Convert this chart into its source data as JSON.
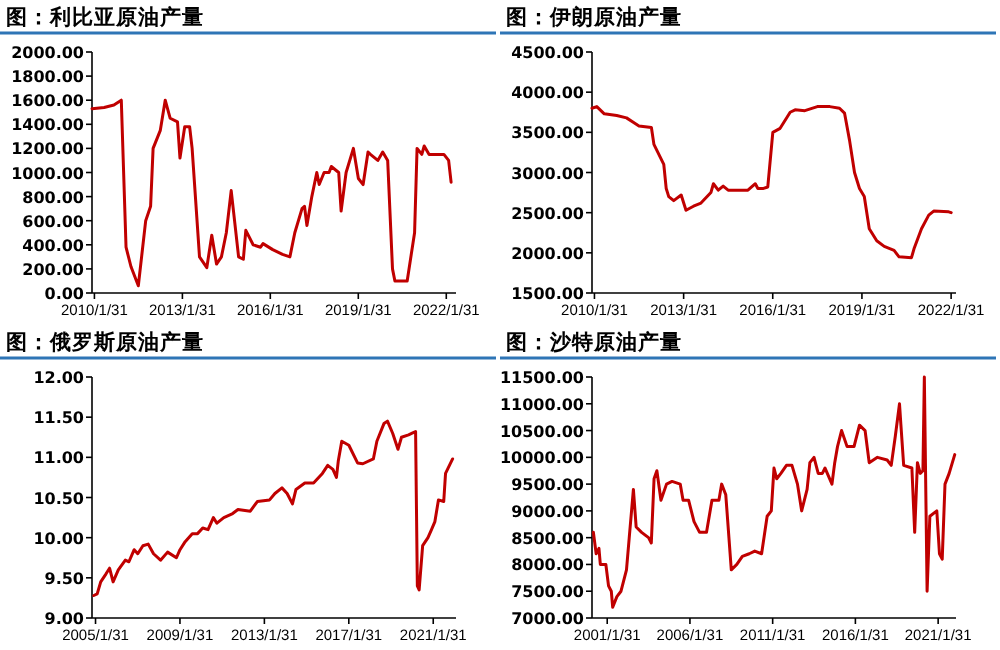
{
  "chart_data": [
    {
      "type": "line",
      "title": "图：利比亚原油产量",
      "x": [
        "2010-01",
        "2010-06",
        "2010-10",
        "2011-01",
        "2011-03",
        "2011-05",
        "2011-08",
        "2011-11",
        "2012-01",
        "2012-02",
        "2012-05",
        "2012-07",
        "2012-09",
        "2012-12",
        "2013-01",
        "2013-03",
        "2013-05",
        "2013-06",
        "2013-09",
        "2013-12",
        "2014-02",
        "2014-04",
        "2014-06",
        "2014-08",
        "2014-10",
        "2015-01",
        "2015-03",
        "2015-04",
        "2015-07",
        "2015-10",
        "2015-11",
        "2016-03",
        "2016-07",
        "2016-10",
        "2016-12",
        "2017-03",
        "2017-04",
        "2017-05",
        "2017-07",
        "2017-09",
        "2017-10",
        "2017-12",
        "2018-02",
        "2018-03",
        "2018-06",
        "2018-07",
        "2018-09",
        "2018-12",
        "2019-02",
        "2019-04",
        "2019-06",
        "2019-07",
        "2019-10",
        "2019-12",
        "2020-02",
        "2020-04",
        "2020-05",
        "2020-08",
        "2020-10",
        "2021-01",
        "2021-02",
        "2021-04",
        "2021-05",
        "2021-07",
        "2022-01",
        "2022-03",
        "2022-04"
      ],
      "series": [
        {
          "color": "#c00000",
          "values": [
            1530,
            1540,
            1560,
            1600,
            380,
            220,
            60,
            600,
            720,
            1200,
            1350,
            1600,
            1450,
            1420,
            1120,
            1380,
            1380,
            1200,
            300,
            210,
            480,
            240,
            300,
            500,
            850,
            300,
            280,
            520,
            400,
            380,
            410,
            360,
            320,
            300,
            500,
            700,
            720,
            560,
            800,
            1000,
            900,
            1000,
            1000,
            1050,
            1000,
            680,
            1000,
            1200,
            950,
            900,
            1170,
            1150,
            1100,
            1170,
            1100,
            200,
            100,
            100,
            100,
            500,
            1200,
            1150,
            1220,
            1150,
            1150,
            1100,
            920
          ]
        }
      ],
      "xlim": [
        "2010-01",
        "2022-06"
      ],
      "xticks": [
        {
          "value": "2010-01-31",
          "label": "2010/1/31"
        },
        {
          "value": "2013-01-31",
          "label": "2013/1/31"
        },
        {
          "value": "2016-01-31",
          "label": "2016/1/31"
        },
        {
          "value": "2019-01-31",
          "label": "2019/1/31"
        },
        {
          "value": "2022-01-31",
          "label": "2022/1/31"
        }
      ],
      "ylim": [
        0,
        2000
      ],
      "yticks": [
        {
          "value": 0,
          "label": "0.00"
        },
        {
          "value": 200,
          "label": "200.00"
        },
        {
          "value": 400,
          "label": "400.00"
        },
        {
          "value": 600,
          "label": "600.00"
        },
        {
          "value": 800,
          "label": "800.00"
        },
        {
          "value": 1000,
          "label": "1000.00"
        },
        {
          "value": 1200,
          "label": "1200.00"
        },
        {
          "value": 1400,
          "label": "1400.00"
        },
        {
          "value": 1600,
          "label": "1600.00"
        },
        {
          "value": 1800,
          "label": "1800.00"
        },
        {
          "value": 2000,
          "label": "2000.00"
        }
      ]
    },
    {
      "type": "line",
      "title": "图：伊朗原油产量",
      "x": [
        "2010-01",
        "2010-03",
        "2010-06",
        "2010-11",
        "2011-03",
        "2011-06",
        "2011-08",
        "2012-01",
        "2012-02",
        "2012-06",
        "2012-07",
        "2012-08",
        "2012-10",
        "2013-01",
        "2013-03",
        "2013-06",
        "2013-09",
        "2014-01",
        "2014-02",
        "2014-04",
        "2014-06",
        "2014-08",
        "2015-01",
        "2015-04",
        "2015-07",
        "2015-08",
        "2015-10",
        "2015-12",
        "2016-02",
        "2016-05",
        "2016-09",
        "2016-11",
        "2017-03",
        "2017-08",
        "2018-01",
        "2018-05",
        "2018-07",
        "2018-09",
        "2018-11",
        "2019-01",
        "2019-03",
        "2019-05",
        "2019-08",
        "2019-11",
        "2020-03",
        "2020-05",
        "2020-10",
        "2020-11",
        "2021-02",
        "2021-05",
        "2021-07",
        "2022-01",
        "2022-02"
      ],
      "series": [
        {
          "color": "#c00000",
          "values": [
            3800,
            3820,
            3730,
            3710,
            3680,
            3620,
            3580,
            3560,
            3350,
            3100,
            2800,
            2700,
            2650,
            2720,
            2530,
            2580,
            2620,
            2750,
            2860,
            2780,
            2830,
            2780,
            2780,
            2780,
            2860,
            2800,
            2800,
            2820,
            3500,
            3550,
            3750,
            3780,
            3770,
            3820,
            3820,
            3800,
            3740,
            3400,
            3000,
            2800,
            2700,
            2300,
            2150,
            2080,
            2030,
            1950,
            1940,
            2050,
            2300,
            2470,
            2520,
            2510,
            2500
          ]
        }
      ],
      "xlim": [
        "2010-01",
        "2022-04"
      ],
      "xticks": [
        {
          "value": "2010-01-31",
          "label": "2010/1/31"
        },
        {
          "value": "2013-01-31",
          "label": "2013/1/31"
        },
        {
          "value": "2016-01-31",
          "label": "2016/1/31"
        },
        {
          "value": "2019-01-31",
          "label": "2019/1/31"
        },
        {
          "value": "2022-01-31",
          "label": "2022/1/31"
        }
      ],
      "ylim": [
        1500,
        4500
      ],
      "yticks": [
        {
          "value": 1500,
          "label": "1500.00"
        },
        {
          "value": 2000,
          "label": "2000.00"
        },
        {
          "value": 2500,
          "label": "2500.00"
        },
        {
          "value": 3000,
          "label": "3000.00"
        },
        {
          "value": 3500,
          "label": "3500.00"
        },
        {
          "value": 4000,
          "label": "4000.00"
        },
        {
          "value": 4500,
          "label": "4500.00"
        }
      ]
    },
    {
      "type": "line",
      "title": "图：俄罗斯原油产量",
      "x": [
        "2005-01",
        "2005-03",
        "2005-05",
        "2005-08",
        "2005-10",
        "2005-12",
        "2006-03",
        "2006-07",
        "2006-09",
        "2006-12",
        "2007-02",
        "2007-05",
        "2007-08",
        "2007-11",
        "2008-03",
        "2008-07",
        "2008-12",
        "2009-02",
        "2009-05",
        "2009-09",
        "2009-12",
        "2010-03",
        "2010-06",
        "2010-09",
        "2010-11",
        "2011-03",
        "2011-08",
        "2011-11",
        "2012-06",
        "2012-10",
        "2013-05",
        "2013-08",
        "2013-12",
        "2014-03",
        "2014-06",
        "2014-08",
        "2015-01",
        "2015-06",
        "2015-11",
        "2016-02",
        "2016-05",
        "2016-07",
        "2016-08",
        "2016-10",
        "2017-02",
        "2017-07",
        "2017-10",
        "2018-04",
        "2018-06",
        "2018-10",
        "2018-12",
        "2019-03",
        "2019-06",
        "2019-08",
        "2019-12",
        "2020-02",
        "2020-04",
        "2020-05",
        "2020-06",
        "2020-08",
        "2020-11",
        "2021-01",
        "2021-03",
        "2021-05",
        "2021-08",
        "2021-09",
        "2022-01"
      ],
      "series": [
        {
          "color": "#c00000",
          "values": [
            9.28,
            9.3,
            9.45,
            9.55,
            9.62,
            9.45,
            9.6,
            9.72,
            9.7,
            9.85,
            9.8,
            9.9,
            9.92,
            9.8,
            9.72,
            9.82,
            9.75,
            9.85,
            9.95,
            10.05,
            10.05,
            10.12,
            10.1,
            10.25,
            10.18,
            10.25,
            10.3,
            10.35,
            10.33,
            10.45,
            10.47,
            10.55,
            10.62,
            10.55,
            10.42,
            10.6,
            10.68,
            10.68,
            10.8,
            10.9,
            10.85,
            10.75,
            10.95,
            11.2,
            11.15,
            10.93,
            10.92,
            10.98,
            11.2,
            11.42,
            11.45,
            11.3,
            11.1,
            11.25,
            11.28,
            11.3,
            11.32,
            9.4,
            9.35,
            9.9,
            10.0,
            10.1,
            10.2,
            10.47,
            10.45,
            10.8,
            10.98
          ]
        }
      ],
      "xlim": [
        "2004-12",
        "2022-03"
      ],
      "xticks": [
        {
          "value": "2005-01-31",
          "label": "2005/1/31"
        },
        {
          "value": "2009-01-31",
          "label": "2009/1/31"
        },
        {
          "value": "2013-01-31",
          "label": "2013/1/31"
        },
        {
          "value": "2017-01-31",
          "label": "2017/1/31"
        },
        {
          "value": "2021-01-31",
          "label": "2021/1/31"
        }
      ],
      "ylim": [
        9,
        12
      ],
      "yticks": [
        {
          "value": 9,
          "label": "9.00"
        },
        {
          "value": 9.5,
          "label": "9.50"
        },
        {
          "value": 10,
          "label": "10.00"
        },
        {
          "value": 10.5,
          "label": "10.50"
        },
        {
          "value": 11,
          "label": "11.00"
        },
        {
          "value": 11.5,
          "label": "11.50"
        },
        {
          "value": 12,
          "label": "12.00"
        }
      ]
    },
    {
      "type": "line",
      "title": "图：沙特原油产量",
      "x": [
        "2000-04",
        "2000-06",
        "2000-08",
        "2000-09",
        "2001-01",
        "2001-03",
        "2001-05",
        "2001-06",
        "2001-09",
        "2001-12",
        "2002-04",
        "2002-06",
        "2002-09",
        "2002-11",
        "2003-03",
        "2003-08",
        "2003-10",
        "2003-12",
        "2004-02",
        "2004-05",
        "2004-09",
        "2005-01",
        "2005-07",
        "2005-09",
        "2006-01",
        "2006-05",
        "2006-09",
        "2007-02",
        "2007-06",
        "2007-11",
        "2008-01",
        "2008-04",
        "2008-08",
        "2008-12",
        "2009-04",
        "2009-09",
        "2010-01",
        "2010-06",
        "2010-10",
        "2011-01",
        "2011-03",
        "2011-05",
        "2011-08",
        "2011-12",
        "2012-04",
        "2012-08",
        "2012-11",
        "2013-03",
        "2013-05",
        "2013-08",
        "2013-11",
        "2014-02",
        "2014-04",
        "2014-09",
        "2014-11",
        "2015-01",
        "2015-04",
        "2015-08",
        "2016-01",
        "2016-05",
        "2016-09",
        "2016-12",
        "2017-06",
        "2018-01",
        "2018-04",
        "2018-07",
        "2018-10",
        "2018-11",
        "2019-01",
        "2019-07",
        "2019-09",
        "2019-11",
        "2020-01",
        "2020-03",
        "2020-04",
        "2020-06",
        "2020-08",
        "2021-01",
        "2021-03",
        "2021-05",
        "2021-07",
        "2021-10",
        "2022-02"
      ],
      "series": [
        {
          "color": "#c00000",
          "values": [
            8600,
            8200,
            8300,
            8000,
            8000,
            7600,
            7500,
            7200,
            7400,
            7500,
            7900,
            8500,
            9400,
            8700,
            8600,
            8500,
            8400,
            9600,
            9750,
            9200,
            9500,
            9550,
            9500,
            9200,
            9200,
            8800,
            8600,
            8600,
            9200,
            9200,
            9500,
            9300,
            7900,
            8000,
            8150,
            8200,
            8250,
            8200,
            8900,
            9000,
            9800,
            9600,
            9700,
            9850,
            9850,
            9500,
            9000,
            9400,
            9900,
            10000,
            9700,
            9700,
            9800,
            9500,
            9900,
            10200,
            10500,
            10200,
            10200,
            10600,
            10500,
            9900,
            10000,
            9950,
            9850,
            10400,
            11000,
            10600,
            9850,
            9800,
            8600,
            9900,
            9700,
            9750,
            11500,
            7500,
            8900,
            9000,
            8200,
            8100,
            9500,
            9700,
            10050
          ]
        }
      ],
      "xlim": [
        "2000-03",
        "2022-03"
      ],
      "xticks": [
        {
          "value": "2001-01-31",
          "label": "2001/1/31"
        },
        {
          "value": "2006-01-31",
          "label": "2006/1/31"
        },
        {
          "value": "2011-01-31",
          "label": "2011/1/31"
        },
        {
          "value": "2016-01-31",
          "label": "2016/1/31"
        },
        {
          "value": "2021-01-31",
          "label": "2021/1/31"
        }
      ],
      "ylim": [
        7000,
        11500
      ],
      "yticks": [
        {
          "value": 7000,
          "label": "7000.00"
        },
        {
          "value": 7500,
          "label": "7500.00"
        },
        {
          "value": 8000,
          "label": "8000.00"
        },
        {
          "value": 8500,
          "label": "8500.00"
        },
        {
          "value": 9000,
          "label": "9000.00"
        },
        {
          "value": 9500,
          "label": "9500.00"
        },
        {
          "value": 10000,
          "label": "10000.00"
        },
        {
          "value": 10500,
          "label": "10500.00"
        },
        {
          "value": 11000,
          "label": "11000.00"
        },
        {
          "value": 11500,
          "label": "11500.00"
        }
      ]
    }
  ]
}
